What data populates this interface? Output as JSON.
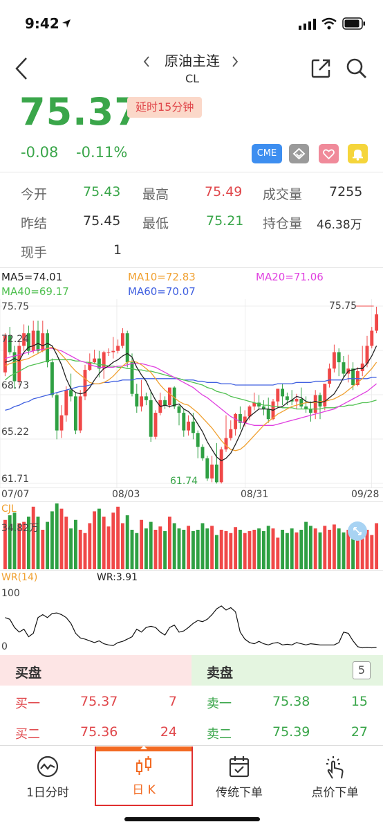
{
  "status_bar": {
    "time": "9:42"
  },
  "header": {
    "title": "原油主连",
    "subtitle": "CL",
    "prev_icon": "chevron-left",
    "next_icon": "chevron-right"
  },
  "quote": {
    "price": "75.37",
    "delay_badge": "延时15分钟",
    "change": "-0.08",
    "change_pct": "-0.11%",
    "exchange_badge": "CME"
  },
  "stats": {
    "open_label": "今开",
    "open": "75.43",
    "high_label": "最高",
    "high": "75.49",
    "volume_label": "成交量",
    "volume": "7255",
    "prev_settle_label": "昨结",
    "prev_settle": "75.45",
    "low_label": "最低",
    "low": "75.21",
    "oi_label": "持仓量",
    "oi": "46.38万",
    "current_hand_label": "现手",
    "current_hand": "1"
  },
  "indicators": {
    "ma5": "MA5=74.01",
    "ma10": "MA10=72.83",
    "ma20": "MA20=71.06",
    "ma40": "MA40=69.17",
    "ma60": "MA60=70.07",
    "colors": {
      "ma5": "#222222",
      "ma10": "#f0a030",
      "ma20": "#e040e0",
      "ma40": "#50c050",
      "ma60": "#4060e0"
    }
  },
  "chart_data": [
    {
      "type": "candlestick",
      "y_ticks": [
        "75.75",
        "72.24",
        "68.73",
        "65.22",
        "61.71"
      ],
      "x_ticks": [
        "07/07",
        "08/03",
        "08/31",
        "09/28"
      ],
      "max_label": "75.75",
      "min_label": "61.74",
      "ylim": [
        61.71,
        75.75
      ],
      "candles": [
        [
          70.5,
          73.4,
          73.6,
          70.2
        ],
        [
          73.4,
          72.1,
          74.1,
          71.9
        ],
        [
          72.1,
          69.8,
          72.6,
          69.2
        ],
        [
          69.8,
          72.6,
          73.1,
          69.5
        ],
        [
          72.6,
          73.6,
          74.3,
          72.2
        ],
        [
          73.6,
          72.2,
          74.2,
          71.9
        ],
        [
          72.2,
          73.8,
          74.6,
          72.0
        ],
        [
          73.8,
          72.2,
          74.6,
          72.0
        ],
        [
          72.2,
          73.6,
          74.6,
          72.1
        ],
        [
          73.6,
          71.3,
          73.9,
          70.9
        ],
        [
          71.3,
          68.7,
          71.6,
          68.5
        ],
        [
          68.7,
          65.9,
          68.9,
          65.2
        ],
        [
          65.9,
          67.1,
          67.9,
          65.3
        ],
        [
          67.1,
          69.1,
          69.4,
          66.6
        ],
        [
          69.1,
          68.6,
          70.4,
          68.2
        ],
        [
          68.6,
          65.9,
          68.9,
          65.6
        ],
        [
          65.9,
          68.6,
          69.1,
          65.7
        ],
        [
          68.6,
          70.7,
          71.1,
          68.3
        ],
        [
          70.7,
          71.3,
          72.0,
          70.6
        ],
        [
          71.3,
          71.6,
          72.3,
          71.2
        ],
        [
          71.6,
          70.8,
          72.2,
          70.1
        ],
        [
          70.8,
          72.1,
          72.2,
          70.0
        ],
        [
          72.1,
          72.1,
          72.4,
          71.8
        ],
        [
          72.1,
          72.2,
          73.3,
          71.6
        ],
        [
          72.2,
          72.6,
          73.1,
          72.0
        ],
        [
          72.6,
          73.6,
          74.0,
          72.4
        ],
        [
          73.6,
          71.3,
          73.8,
          70.9
        ],
        [
          71.3,
          68.8,
          72.0,
          68.6
        ],
        [
          68.8,
          67.8,
          69.6,
          67.3
        ],
        [
          67.8,
          68.6,
          69.9,
          67.4
        ],
        [
          68.6,
          68.3,
          68.9,
          67.9
        ],
        [
          68.3,
          65.4,
          69.0,
          65.0
        ],
        [
          65.4,
          67.3,
          67.5,
          65.2
        ],
        [
          67.3,
          68.3,
          68.9,
          67.1
        ],
        [
          68.3,
          67.9,
          68.6,
          67.6
        ],
        [
          67.9,
          69.3,
          69.3,
          67.7
        ],
        [
          69.3,
          67.8,
          69.4,
          67.6
        ],
        [
          67.8,
          67.3,
          67.9,
          66.3
        ],
        [
          67.3,
          65.9,
          67.6,
          65.4
        ],
        [
          65.9,
          66.6,
          67.1,
          65.5
        ],
        [
          66.6,
          65.7,
          67.3,
          65.2
        ],
        [
          65.7,
          64.6,
          65.9,
          63.7
        ],
        [
          64.6,
          63.7,
          64.8,
          63.5
        ],
        [
          63.7,
          62.1,
          63.9,
          61.9
        ],
        [
          62.1,
          63.2,
          63.9,
          61.8
        ],
        [
          63.2,
          61.8,
          64.9,
          61.7
        ],
        [
          61.8,
          64.4,
          64.6,
          61.7
        ],
        [
          64.4,
          65.3,
          67.1,
          64.2
        ],
        [
          65.3,
          66.0,
          66.7,
          65.1
        ],
        [
          66.0,
          67.2,
          67.3,
          65.5
        ],
        [
          67.2,
          66.5,
          67.8,
          66.0
        ],
        [
          66.5,
          67.0,
          67.5,
          66.2
        ],
        [
          67.0,
          67.8,
          67.9,
          66.7
        ],
        [
          67.8,
          68.1,
          68.9,
          67.5
        ],
        [
          68.1,
          67.8,
          68.7,
          67.6
        ],
        [
          67.8,
          67.6,
          68.3,
          67.1
        ],
        [
          67.6,
          66.8,
          68.5,
          66.5
        ],
        [
          66.8,
          68.2,
          68.4,
          66.7
        ],
        [
          68.2,
          69.2,
          69.2,
          67.7
        ],
        [
          69.2,
          68.6,
          69.6,
          67.9
        ],
        [
          68.6,
          68.3,
          68.9,
          67.9
        ],
        [
          68.3,
          68.2,
          69.1,
          67.9
        ],
        [
          68.2,
          68.4,
          68.8,
          67.6
        ],
        [
          68.4,
          67.8,
          69.3,
          67.6
        ],
        [
          67.8,
          67.6,
          68.6,
          67.3
        ],
        [
          67.6,
          67.3,
          68.2,
          66.6
        ],
        [
          67.3,
          68.7,
          69.1,
          66.8
        ],
        [
          68.7,
          67.8,
          68.9,
          66.8
        ],
        [
          67.8,
          69.6,
          69.6,
          67.5
        ],
        [
          69.6,
          70.8,
          71.2,
          69.3
        ],
        [
          70.8,
          72.1,
          72.7,
          70.5
        ],
        [
          72.1,
          71.3,
          72.4,
          70.2
        ],
        [
          71.3,
          70.4,
          71.8,
          70.1
        ],
        [
          70.4,
          70.8,
          71.9,
          69.7
        ],
        [
          70.8,
          69.5,
          71.3,
          69.1
        ],
        [
          69.5,
          70.6,
          70.9,
          69.4
        ],
        [
          70.6,
          71.2,
          72.6,
          70.2
        ],
        [
          71.2,
          72.6,
          73.4,
          70.9
        ],
        [
          72.6,
          73.8,
          74.1,
          72.4
        ],
        [
          73.8,
          75.1,
          75.7,
          73.6
        ]
      ],
      "ma5": [
        71.3,
        71.4,
        71.6,
        71.4,
        72.1,
        72.5,
        72.6,
        72.8,
        72.6,
        72.8,
        72.6,
        71.9,
        71.1,
        70.0,
        69.2,
        68.9,
        68.8,
        68.9,
        69.3,
        69.9,
        70.4,
        70.8,
        71.0,
        71.3,
        71.5,
        71.8,
        72.0,
        71.7,
        70.9,
        70.3,
        69.8,
        69.0,
        68.3,
        67.8,
        67.9,
        67.8,
        67.9,
        68.0,
        67.6,
        67.4,
        67.0,
        66.4,
        65.8,
        65.0,
        64.4,
        63.8,
        63.5,
        63.7,
        64.1,
        64.8,
        65.6,
        66.5,
        67.0,
        67.3,
        67.6,
        67.6,
        67.6,
        67.5,
        67.7,
        67.8,
        68.1,
        68.3,
        68.6,
        68.5,
        68.2,
        68.1,
        68.2,
        68.1,
        68.2,
        68.5,
        68.8,
        69.4,
        70.1,
        70.6,
        70.7,
        70.8,
        70.8,
        71.2,
        71.8,
        72.6
      ],
      "ma10": [
        71.0,
        71.2,
        71.3,
        71.4,
        71.5,
        71.6,
        71.8,
        72.0,
        72.2,
        72.4,
        72.5,
        72.3,
        71.9,
        71.5,
        71.0,
        70.6,
        70.3,
        70.0,
        69.7,
        69.6,
        69.6,
        69.7,
        69.9,
        70.2,
        70.6,
        71.0,
        71.3,
        71.4,
        71.3,
        71.1,
        70.8,
        70.5,
        70.0,
        69.5,
        69.1,
        68.8,
        68.5,
        68.2,
        68.0,
        67.9,
        67.6,
        67.3,
        66.9,
        66.5,
        66.1,
        65.6,
        65.1,
        64.7,
        64.4,
        64.3,
        64.4,
        64.7,
        65.1,
        65.5,
        65.9,
        66.3,
        66.6,
        66.9,
        67.2,
        67.4,
        67.6,
        67.8,
        67.9,
        68.0,
        68.1,
        68.1,
        68.1,
        68.2,
        68.2,
        68.3,
        68.4,
        68.6,
        68.8,
        69.1,
        69.4,
        69.7,
        70.0,
        70.4,
        70.8,
        71.3
      ],
      "ma20": [
        71.6,
        71.7,
        71.8,
        71.9,
        72.0,
        72.1,
        72.2,
        72.3,
        72.3,
        72.4,
        72.4,
        72.3,
        72.2,
        72.0,
        71.8,
        71.6,
        71.4,
        71.3,
        71.1,
        71.0,
        70.9,
        70.9,
        70.9,
        70.9,
        71.0,
        71.0,
        71.1,
        71.2,
        71.2,
        71.2,
        71.1,
        71.0,
        70.9,
        70.7,
        70.5,
        70.3,
        70.1,
        69.9,
        69.7,
        69.5,
        69.3,
        69.0,
        68.7,
        68.5,
        68.2,
        67.9,
        67.6,
        67.3,
        67.0,
        66.8,
        66.6,
        66.5,
        66.4,
        66.3,
        66.3,
        66.3,
        66.3,
        66.3,
        66.4,
        66.5,
        66.6,
        66.7,
        66.8,
        66.9,
        67.0,
        67.1,
        67.2,
        67.3,
        67.4,
        67.5,
        67.6,
        67.8,
        68.0,
        68.2,
        68.4,
        68.6,
        68.8,
        69.0,
        69.3,
        69.6
      ],
      "ma40": [
        69.9,
        70.2,
        70.4,
        70.6,
        70.8,
        71.0,
        71.1,
        71.2,
        71.3,
        71.4,
        71.5,
        71.5,
        71.5,
        71.5,
        71.5,
        71.4,
        71.4,
        71.3,
        71.3,
        71.2,
        71.1,
        71.1,
        71.0,
        71.0,
        70.9,
        70.9,
        70.8,
        70.8,
        70.7,
        70.7,
        70.6,
        70.6,
        70.5,
        70.4,
        70.3,
        70.2,
        70.1,
        70.0,
        69.9,
        69.8,
        69.7,
        69.6,
        69.5,
        69.3,
        69.2,
        69.0,
        68.9,
        68.8,
        68.6,
        68.5,
        68.4,
        68.3,
        68.2,
        68.1,
        68.0,
        67.9,
        67.9,
        67.8,
        67.8,
        67.7,
        67.7,
        67.7,
        67.6,
        67.6,
        67.6,
        67.6,
        67.6,
        67.6,
        67.7,
        67.7,
        67.7,
        67.8,
        67.8,
        67.9,
        67.9,
        68.0,
        68.1,
        68.1,
        68.2,
        68.3
      ],
      "ma60": [
        67.5,
        67.6,
        67.8,
        67.9,
        68.1,
        68.2,
        68.4,
        68.5,
        68.6,
        68.7,
        68.8,
        68.9,
        69.0,
        69.1,
        69.2,
        69.3,
        69.4,
        69.4,
        69.5,
        69.6,
        69.6,
        69.7,
        69.7,
        69.8,
        69.8,
        69.9,
        69.9,
        69.9,
        70.0,
        70.0,
        70.0,
        70.0,
        70.0,
        70.0,
        70.0,
        70.0,
        70.0,
        70.0,
        69.9,
        69.9,
        69.9,
        69.8,
        69.8,
        69.7,
        69.7,
        69.7,
        69.6,
        69.6,
        69.6,
        69.5,
        69.5,
        69.5,
        69.5,
        69.5,
        69.5,
        69.5,
        69.5,
        69.5,
        69.6,
        69.6,
        69.6,
        69.6,
        69.7,
        69.7,
        69.7,
        69.7,
        69.8,
        69.8,
        69.8,
        69.9,
        69.9,
        69.9,
        69.9,
        70.0,
        70.0,
        70.0,
        70.0,
        70.0,
        70.1,
        70.1
      ]
    },
    {
      "type": "bar",
      "label": "CJL",
      "value_label": "34.82万",
      "volume": [
        75,
        82,
        86,
        70,
        72,
        80,
        95,
        80,
        60,
        72,
        88,
        100,
        92,
        80,
        62,
        75,
        60,
        55,
        70,
        88,
        92,
        80,
        65,
        86,
        95,
        70,
        82,
        60,
        55,
        75,
        62,
        72,
        60,
        65,
        58,
        80,
        70,
        62,
        60,
        66,
        58,
        60,
        70,
        62,
        66,
        52,
        60,
        58,
        55,
        64,
        60,
        55,
        58,
        60,
        62,
        58,
        66,
        62,
        48,
        60,
        55,
        62,
        56,
        60,
        72,
        66,
        62,
        56,
        66,
        60,
        68,
        62,
        56,
        60,
        55,
        62,
        48,
        60,
        52,
        70
      ]
    },
    {
      "type": "line",
      "label": "WR(14)",
      "value_label": "WR:3.91",
      "y_ticks": [
        "100",
        "0"
      ],
      "ylim": [
        0,
        100
      ],
      "values": [
        55,
        52,
        38,
        30,
        35,
        22,
        28,
        55,
        60,
        55,
        62,
        63,
        60,
        55,
        45,
        28,
        20,
        18,
        15,
        12,
        15,
        10,
        8,
        7,
        12,
        14,
        18,
        22,
        35,
        30,
        38,
        40,
        38,
        30,
        25,
        38,
        42,
        30,
        32,
        38,
        45,
        50,
        48,
        52,
        60,
        70,
        75,
        68,
        72,
        65,
        30,
        18,
        12,
        10,
        14,
        10,
        8,
        11,
        12,
        8,
        9,
        8,
        12,
        10,
        8,
        10,
        9,
        8,
        8,
        8,
        8,
        12,
        30,
        28,
        15,
        5,
        3,
        4,
        3,
        4
      ]
    }
  ],
  "orderbook": {
    "buy_header": "买盘",
    "sell_header": "卖盘",
    "depth_badge": "5",
    "bids": [
      {
        "label": "买一",
        "price": "75.37",
        "qty": "7"
      },
      {
        "label": "买二",
        "price": "75.36",
        "qty": "24"
      }
    ],
    "asks": [
      {
        "label": "卖一",
        "price": "75.38",
        "qty": "15"
      },
      {
        "label": "卖二",
        "price": "75.39",
        "qty": "27"
      }
    ]
  },
  "tabs": [
    {
      "label": "1日分时",
      "icon": "intraday-chart-icon"
    },
    {
      "label": "日 K",
      "icon": "candlestick-icon",
      "active": true
    },
    {
      "label": "传统下单",
      "icon": "calendar-order-icon"
    },
    {
      "label": "点价下单",
      "icon": "tap-order-icon"
    }
  ]
}
